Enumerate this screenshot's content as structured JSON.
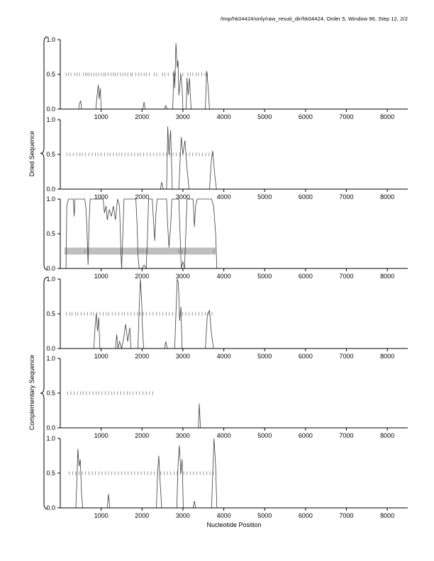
{
  "title": "/tmp/hk04424/only/raw_resuti_dir/hk04424, Order 5, Window 96, Step 12, 2/2",
  "groups": [
    {
      "label": "Dried Sequence"
    },
    {
      "label": "Complementary Sequence"
    }
  ],
  "chart_data": {
    "type": "line",
    "title": "/tmp/hk04424/only/raw_resuti_dir/hk04424, Order 5, Window 96, Step 12, 2/2",
    "xlabel": "Nucleotide Position",
    "ylabel": "",
    "x_range": [
      0,
      8500
    ],
    "y_range": [
      0,
      1
    ],
    "x_ticks": [
      1000,
      2000,
      3000,
      4000,
      5000,
      6000,
      7000,
      8000
    ],
    "y_ticks": [
      {
        "v": 1.0,
        "label": "1.0"
      },
      {
        "v": 0.5,
        "label": "0.5"
      },
      {
        "v": 0.0,
        "label": "0.0"
      }
    ],
    "grid": false,
    "legend": "none",
    "line_color": "#3c3c3c",
    "mark_color": "#7a7a7a",
    "band_color": "#bfbfbf",
    "panels": [
      {
        "name": "direct-frame-1",
        "marks_y": 0.5,
        "band": null,
        "marks": [
          140,
          200,
          260,
          350,
          410,
          470,
          560,
          620,
          660,
          700,
          760,
          820,
          880,
          940,
          1010,
          1070,
          1110,
          1170,
          1240,
          1300,
          1340,
          1400,
          1470,
          1530,
          1590,
          1650,
          1720,
          1760,
          1850,
          1920,
          1980,
          2050,
          2110,
          2180,
          2300,
          2360,
          2500,
          2560,
          2640,
          2760,
          2820,
          2940,
          3000,
          3120,
          3180,
          3240,
          3320,
          3380,
          3460,
          3540,
          3600
        ],
        "line": [
          [
            0,
            0
          ],
          [
            450,
            0
          ],
          [
            470,
            0.08
          ],
          [
            500,
            0.12
          ],
          [
            520,
            0
          ],
          [
            870,
            0
          ],
          [
            900,
            0.2
          ],
          [
            930,
            0.35
          ],
          [
            950,
            0.15
          ],
          [
            980,
            0.3
          ],
          [
            1000,
            0
          ],
          [
            2020,
            0
          ],
          [
            2050,
            0.1
          ],
          [
            2080,
            0
          ],
          [
            2550,
            0
          ],
          [
            2580,
            0.05
          ],
          [
            2620,
            0
          ],
          [
            2750,
            0
          ],
          [
            2780,
            0.55
          ],
          [
            2800,
            0.3
          ],
          [
            2830,
            0.95
          ],
          [
            2860,
            0.6
          ],
          [
            2880,
            0.7
          ],
          [
            2900,
            0.2
          ],
          [
            2950,
            0.5
          ],
          [
            2980,
            0.3
          ],
          [
            3000,
            0
          ],
          [
            3080,
            0
          ],
          [
            3100,
            0.45
          ],
          [
            3130,
            0.2
          ],
          [
            3160,
            0.45
          ],
          [
            3200,
            0
          ],
          [
            3550,
            0
          ],
          [
            3580,
            0.55
          ],
          [
            3620,
            0.3
          ],
          [
            3650,
            0
          ],
          [
            8500,
            0
          ]
        ]
      },
      {
        "name": "direct-frame-2",
        "marks_y": 0.5,
        "band": null,
        "marks": [
          160,
          240,
          320,
          400,
          480,
          540,
          620,
          700,
          780,
          860,
          920,
          1000,
          1080,
          1160,
          1220,
          1300,
          1380,
          1440,
          1500,
          1580,
          1660,
          1740,
          1820,
          1900,
          1960,
          2040,
          2120,
          2200,
          2280,
          2360,
          2440,
          2520,
          2600,
          2680,
          2760,
          2840,
          2920,
          3000,
          3080,
          3160,
          3240,
          3320,
          3400,
          3480,
          3560,
          3640,
          3720
        ],
        "line": [
          [
            0,
            0
          ],
          [
            2450,
            0
          ],
          [
            2480,
            0.1
          ],
          [
            2520,
            0
          ],
          [
            2600,
            0
          ],
          [
            2630,
            0.9
          ],
          [
            2660,
            0.5
          ],
          [
            2700,
            0.85
          ],
          [
            2740,
            0
          ],
          [
            2900,
            0
          ],
          [
            2930,
            0.4
          ],
          [
            2960,
            0.75
          ],
          [
            3000,
            0.5
          ],
          [
            3050,
            0.7
          ],
          [
            3100,
            0.3
          ],
          [
            3150,
            0
          ],
          [
            3650,
            0
          ],
          [
            3700,
            0.45
          ],
          [
            3730,
            0.55
          ],
          [
            3780,
            0.2
          ],
          [
            3820,
            0
          ],
          [
            8500,
            0
          ]
        ]
      },
      {
        "name": "direct-frame-3",
        "marks_y": 0.25,
        "band": {
          "x": [
            100,
            3800
          ],
          "y": [
            0.2,
            0.3
          ]
        },
        "marks": [
          600,
          680,
          1950,
          2020,
          2100,
          2900,
          2980,
          3060,
          3750
        ],
        "line": [
          [
            0,
            0
          ],
          [
            140,
            0
          ],
          [
            160,
            0.9
          ],
          [
            200,
            1
          ],
          [
            320,
            1
          ],
          [
            340,
            0.75
          ],
          [
            360,
            1
          ],
          [
            600,
            1
          ],
          [
            630,
            0.85
          ],
          [
            650,
            0.6
          ],
          [
            680,
            0.05
          ],
          [
            700,
            0.6
          ],
          [
            730,
            1
          ],
          [
            1050,
            1
          ],
          [
            1080,
            0.8
          ],
          [
            1120,
            0.9
          ],
          [
            1150,
            0.7
          ],
          [
            1200,
            0.85
          ],
          [
            1250,
            0.75
          ],
          [
            1300,
            0.9
          ],
          [
            1350,
            0.7
          ],
          [
            1400,
            1
          ],
          [
            1450,
            0.9
          ],
          [
            1480,
            0.3
          ],
          [
            1500,
            0
          ],
          [
            1530,
            0.5
          ],
          [
            1560,
            1
          ],
          [
            1850,
            1
          ],
          [
            1880,
            0.6
          ],
          [
            1900,
            0.2
          ],
          [
            1930,
            0
          ],
          [
            2000,
            0
          ],
          [
            2050,
            0.05
          ],
          [
            2100,
            0
          ],
          [
            2130,
            0.4
          ],
          [
            2160,
            1
          ],
          [
            2250,
            1
          ],
          [
            2280,
            0.7
          ],
          [
            2310,
            0.4
          ],
          [
            2340,
            0.8
          ],
          [
            2370,
            1
          ],
          [
            2600,
            1
          ],
          [
            2630,
            0.6
          ],
          [
            2660,
            0.3
          ],
          [
            2700,
            0.6
          ],
          [
            2730,
            1
          ],
          [
            2900,
            1
          ],
          [
            2930,
            0.5
          ],
          [
            2960,
            0
          ],
          [
            3000,
            0.1
          ],
          [
            3040,
            0
          ],
          [
            3070,
            0.5
          ],
          [
            3100,
            1
          ],
          [
            3250,
            1
          ],
          [
            3280,
            0.6
          ],
          [
            3310,
            0.9
          ],
          [
            3350,
            1
          ],
          [
            3700,
            1
          ],
          [
            3750,
            0.9
          ],
          [
            3800,
            0.5
          ],
          [
            3830,
            0
          ],
          [
            8500,
            0
          ]
        ]
      },
      {
        "name": "complementary-frame-1",
        "marks_y": 0.5,
        "band": null,
        "marks": [
          150,
          230,
          290,
          370,
          430,
          510,
          590,
          670,
          750,
          810,
          890,
          970,
          1050,
          1130,
          1190,
          1270,
          1350,
          1430,
          1510,
          1570,
          1650,
          1730,
          1810,
          1890,
          1950,
          2030,
          2110,
          2190,
          2270,
          2350,
          2430,
          2510,
          2590,
          2670,
          2750,
          2830,
          2910,
          2990,
          3070,
          3150,
          3230,
          3310,
          3390,
          3470,
          3550,
          3630,
          3710
        ],
        "line": [
          [
            0,
            0
          ],
          [
            820,
            0
          ],
          [
            850,
            0.3
          ],
          [
            880,
            0.5
          ],
          [
            910,
            0.25
          ],
          [
            940,
            0.45
          ],
          [
            970,
            0
          ],
          [
            1350,
            0
          ],
          [
            1380,
            0.2
          ],
          [
            1410,
            0
          ],
          [
            1450,
            0.1
          ],
          [
            1500,
            0
          ],
          [
            1550,
            0.15
          ],
          [
            1600,
            0.35
          ],
          [
            1650,
            0.1
          ],
          [
            1700,
            0.3
          ],
          [
            1730,
            0
          ],
          [
            1900,
            0
          ],
          [
            1930,
            0.6
          ],
          [
            1960,
            1
          ],
          [
            1990,
            0.7
          ],
          [
            2010,
            0.3
          ],
          [
            2040,
            0
          ],
          [
            2550,
            0
          ],
          [
            2580,
            0.1
          ],
          [
            2620,
            0
          ],
          [
            2800,
            0
          ],
          [
            2830,
            0.5
          ],
          [
            2860,
            1
          ],
          [
            2890,
            0.95
          ],
          [
            2920,
            0.4
          ],
          [
            2950,
            0.6
          ],
          [
            2980,
            0
          ],
          [
            3550,
            0
          ],
          [
            3600,
            0.5
          ],
          [
            3650,
            0.55
          ],
          [
            3700,
            0.2
          ],
          [
            3750,
            0
          ],
          [
            8500,
            0
          ]
        ]
      },
      {
        "name": "complementary-frame-2",
        "marks_y": 0.5,
        "band": null,
        "marks": [
          180,
          260,
          340,
          420,
          500,
          560,
          640,
          720,
          800,
          880,
          940,
          1020,
          1100,
          1180,
          1260,
          1320,
          1400,
          1480,
          1560,
          1640,
          1700,
          1780,
          1860,
          1940,
          2020,
          2100,
          2180,
          2260
        ],
        "line": [
          [
            0,
            0
          ],
          [
            3380,
            0
          ],
          [
            3400,
            0.35
          ],
          [
            3430,
            0
          ],
          [
            8500,
            0
          ]
        ]
      },
      {
        "name": "complementary-frame-3",
        "marks_y": 0.5,
        "band": null,
        "marks": [
          220,
          300,
          380,
          460,
          540,
          620,
          700,
          780,
          860,
          940,
          1020,
          1100,
          1180,
          1260,
          1340,
          1420,
          1500,
          1580,
          1660,
          1740,
          1820,
          1900,
          1980,
          2060,
          2140,
          2220,
          2300,
          2380,
          2460,
          2540,
          2620,
          2700,
          2780,
          2860,
          2940,
          3020,
          3100,
          3180,
          3260,
          3340,
          3420,
          3500,
          3580,
          3660,
          3740
        ],
        "line": [
          [
            0,
            0
          ],
          [
            380,
            0
          ],
          [
            400,
            0.3
          ],
          [
            430,
            0.85
          ],
          [
            460,
            0.6
          ],
          [
            490,
            0.7
          ],
          [
            520,
            0.2
          ],
          [
            550,
            0
          ],
          [
            1150,
            0
          ],
          [
            1180,
            0.2
          ],
          [
            1210,
            0
          ],
          [
            2350,
            0
          ],
          [
            2380,
            0.5
          ],
          [
            2410,
            0.75
          ],
          [
            2450,
            0.3
          ],
          [
            2480,
            0
          ],
          [
            2850,
            0
          ],
          [
            2880,
            0.6
          ],
          [
            2910,
            0.9
          ],
          [
            2950,
            0.5
          ],
          [
            2980,
            0.7
          ],
          [
            3010,
            0
          ],
          [
            3250,
            0
          ],
          [
            3280,
            0.1
          ],
          [
            3310,
            0
          ],
          [
            3700,
            0
          ],
          [
            3730,
            0.5
          ],
          [
            3760,
            1
          ],
          [
            3800,
            0.6
          ],
          [
            3830,
            0
          ],
          [
            8500,
            0
          ]
        ]
      }
    ]
  }
}
